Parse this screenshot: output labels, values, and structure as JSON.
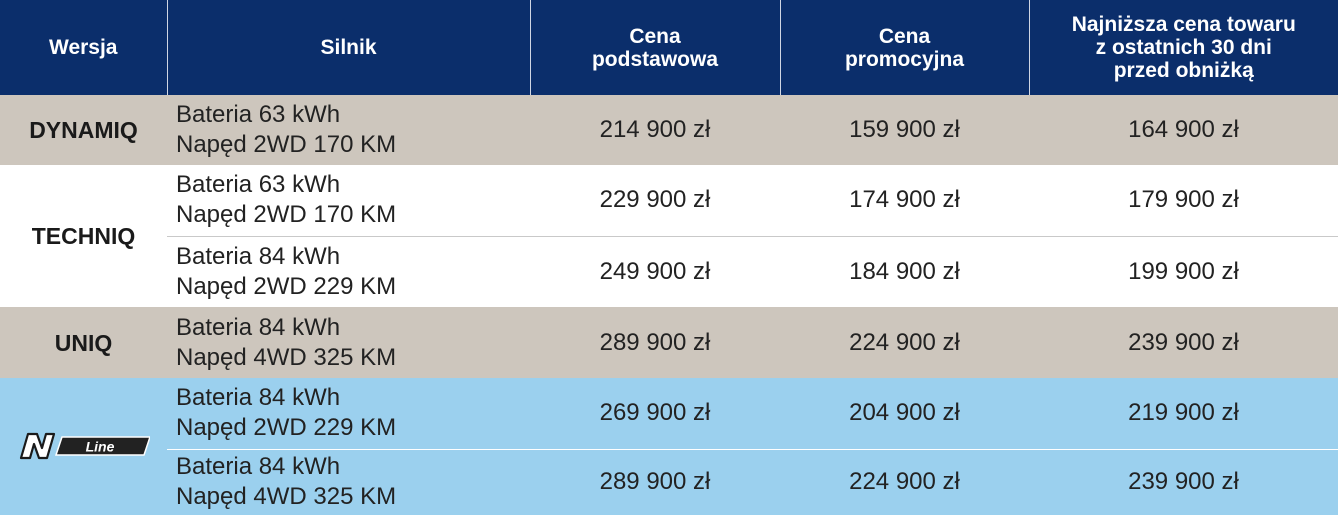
{
  "table": {
    "headers": [
      "Wersja",
      "Silnik",
      "Cena\npodstawowa",
      "Cena\npromocyjna",
      "Najniższa cena towaru\nz ostatnich 30 dni\nprzed obniżką"
    ],
    "groups": [
      {
        "version": "DYNAMIQ",
        "rows": [
          {
            "battery": "Bateria 63 kWh",
            "drive": "Napęd 2WD 170 KM",
            "base_price": "214 900 zł",
            "promo_price": "159 900 zł",
            "lowest_price": "164 900 zł"
          }
        ]
      },
      {
        "version": "TECHNIQ",
        "rows": [
          {
            "battery": "Bateria 63 kWh",
            "drive": "Napęd 2WD 170 KM",
            "base_price": "229 900 zł",
            "promo_price": "174 900 zł",
            "lowest_price": "179 900 zł"
          },
          {
            "battery": "Bateria 84 kWh",
            "drive": "Napęd 2WD 229 KM",
            "base_price": "249 900 zł",
            "promo_price": "184 900 zł",
            "lowest_price": "199 900 zł"
          }
        ]
      },
      {
        "version": "UNIQ",
        "rows": [
          {
            "battery": "Bateria 84 kWh",
            "drive": "Napęd 4WD 325 KM",
            "base_price": "289 900 zł",
            "promo_price": "224 900 zł",
            "lowest_price": "239 900 zł"
          }
        ]
      },
      {
        "version_logo": {
          "letter": "N",
          "text": "Line"
        },
        "rows": [
          {
            "battery": "Bateria 84 kWh",
            "drive": "Napęd 2WD 229 KM",
            "base_price": "269 900 zł",
            "promo_price": "204 900 zł",
            "lowest_price": "219 900 zł"
          },
          {
            "battery": "Bateria 84 kWh",
            "drive": "Napęd 4WD 325 KM",
            "base_price": "289 900 zł",
            "promo_price": "224 900 zł",
            "lowest_price": "239 900 zł"
          }
        ]
      }
    ]
  },
  "colors": {
    "header_bg": "#0b2e6b",
    "dynamiq_uniq_bg": "#cdc6bd",
    "techniq_bg": "#ffffff",
    "nline_bg": "#9bd0ee"
  }
}
